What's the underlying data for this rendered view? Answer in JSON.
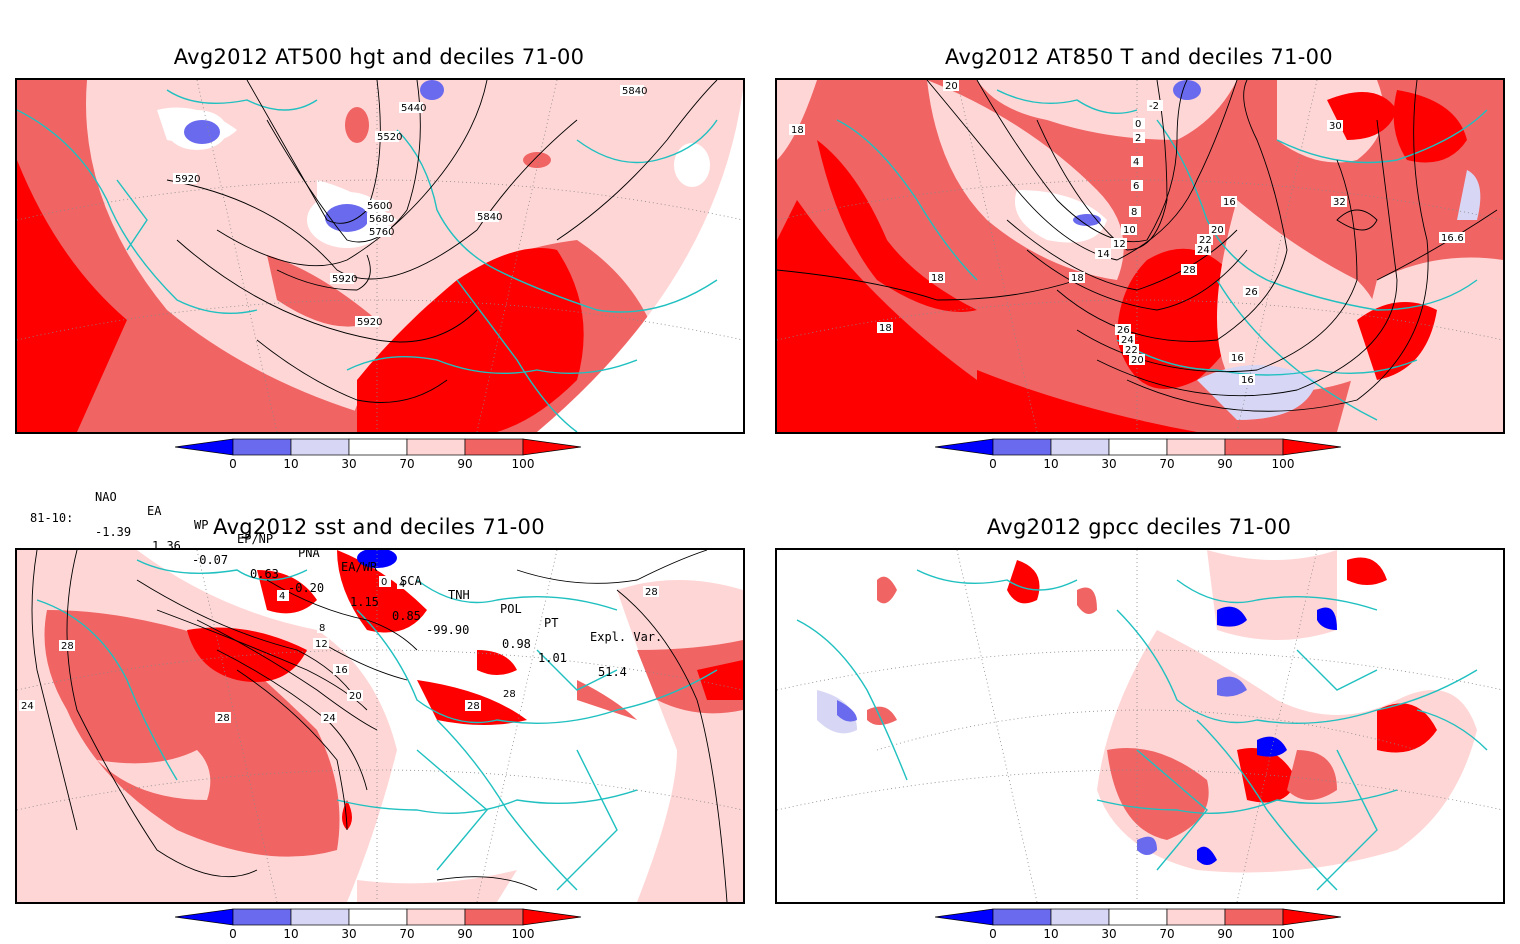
{
  "colorbar": {
    "colors": [
      "#0000ff",
      "#6a6aef",
      "#d7d7f5",
      "#ffffff",
      "#ffd6d6",
      "#f06464",
      "#ff0000"
    ],
    "ticks": [
      "0",
      "10",
      "30",
      "70",
      "90",
      "100"
    ]
  },
  "indices": {
    "headers": [
      "NAO",
      "EA",
      "WP",
      "EP/NP",
      "PNA",
      "EA/WR",
      "SCA",
      "TNH",
      "POL",
      "PT",
      "Expl. Var."
    ],
    "row_label": "81-10:",
    "values": [
      "-1.39",
      "1.36",
      "-0.07",
      "0.63",
      "-0.20",
      "1.15",
      "0.85",
      "-99.90",
      "0.98",
      "1.01",
      "51.4"
    ]
  },
  "panels": [
    {
      "id": "hgt",
      "title": "Avg2012 AT500 hgt and deciles 71-00",
      "contour_labels": [
        "5440",
        "5520",
        "5600",
        "5680",
        "5760",
        "5840",
        "5840",
        "5920",
        "5920",
        "5920"
      ]
    },
    {
      "id": "t850",
      "title": "Avg2012 AT850 T and deciles 71-00",
      "contour_labels": [
        "20",
        "-2",
        "0",
        "2",
        "4",
        "6",
        "8",
        "10",
        "12",
        "14",
        "16",
        "16",
        "16",
        "18",
        "18",
        "18",
        "18",
        "20",
        "22",
        "24",
        "26",
        "28",
        "30",
        "32",
        "26",
        "24",
        "22",
        "20",
        "16",
        "16"
      ]
    },
    {
      "id": "sst",
      "title": "Avg2012 sst and deciles 71-00",
      "contour_labels": [
        "4",
        "8",
        "12",
        "16",
        "20",
        "24",
        "28",
        "28",
        "28",
        "28",
        "24",
        "28",
        "0",
        "4"
      ]
    },
    {
      "id": "gpcc",
      "title": "Avg2012 gpcc deciles 71-00",
      "contour_labels": []
    }
  ]
}
